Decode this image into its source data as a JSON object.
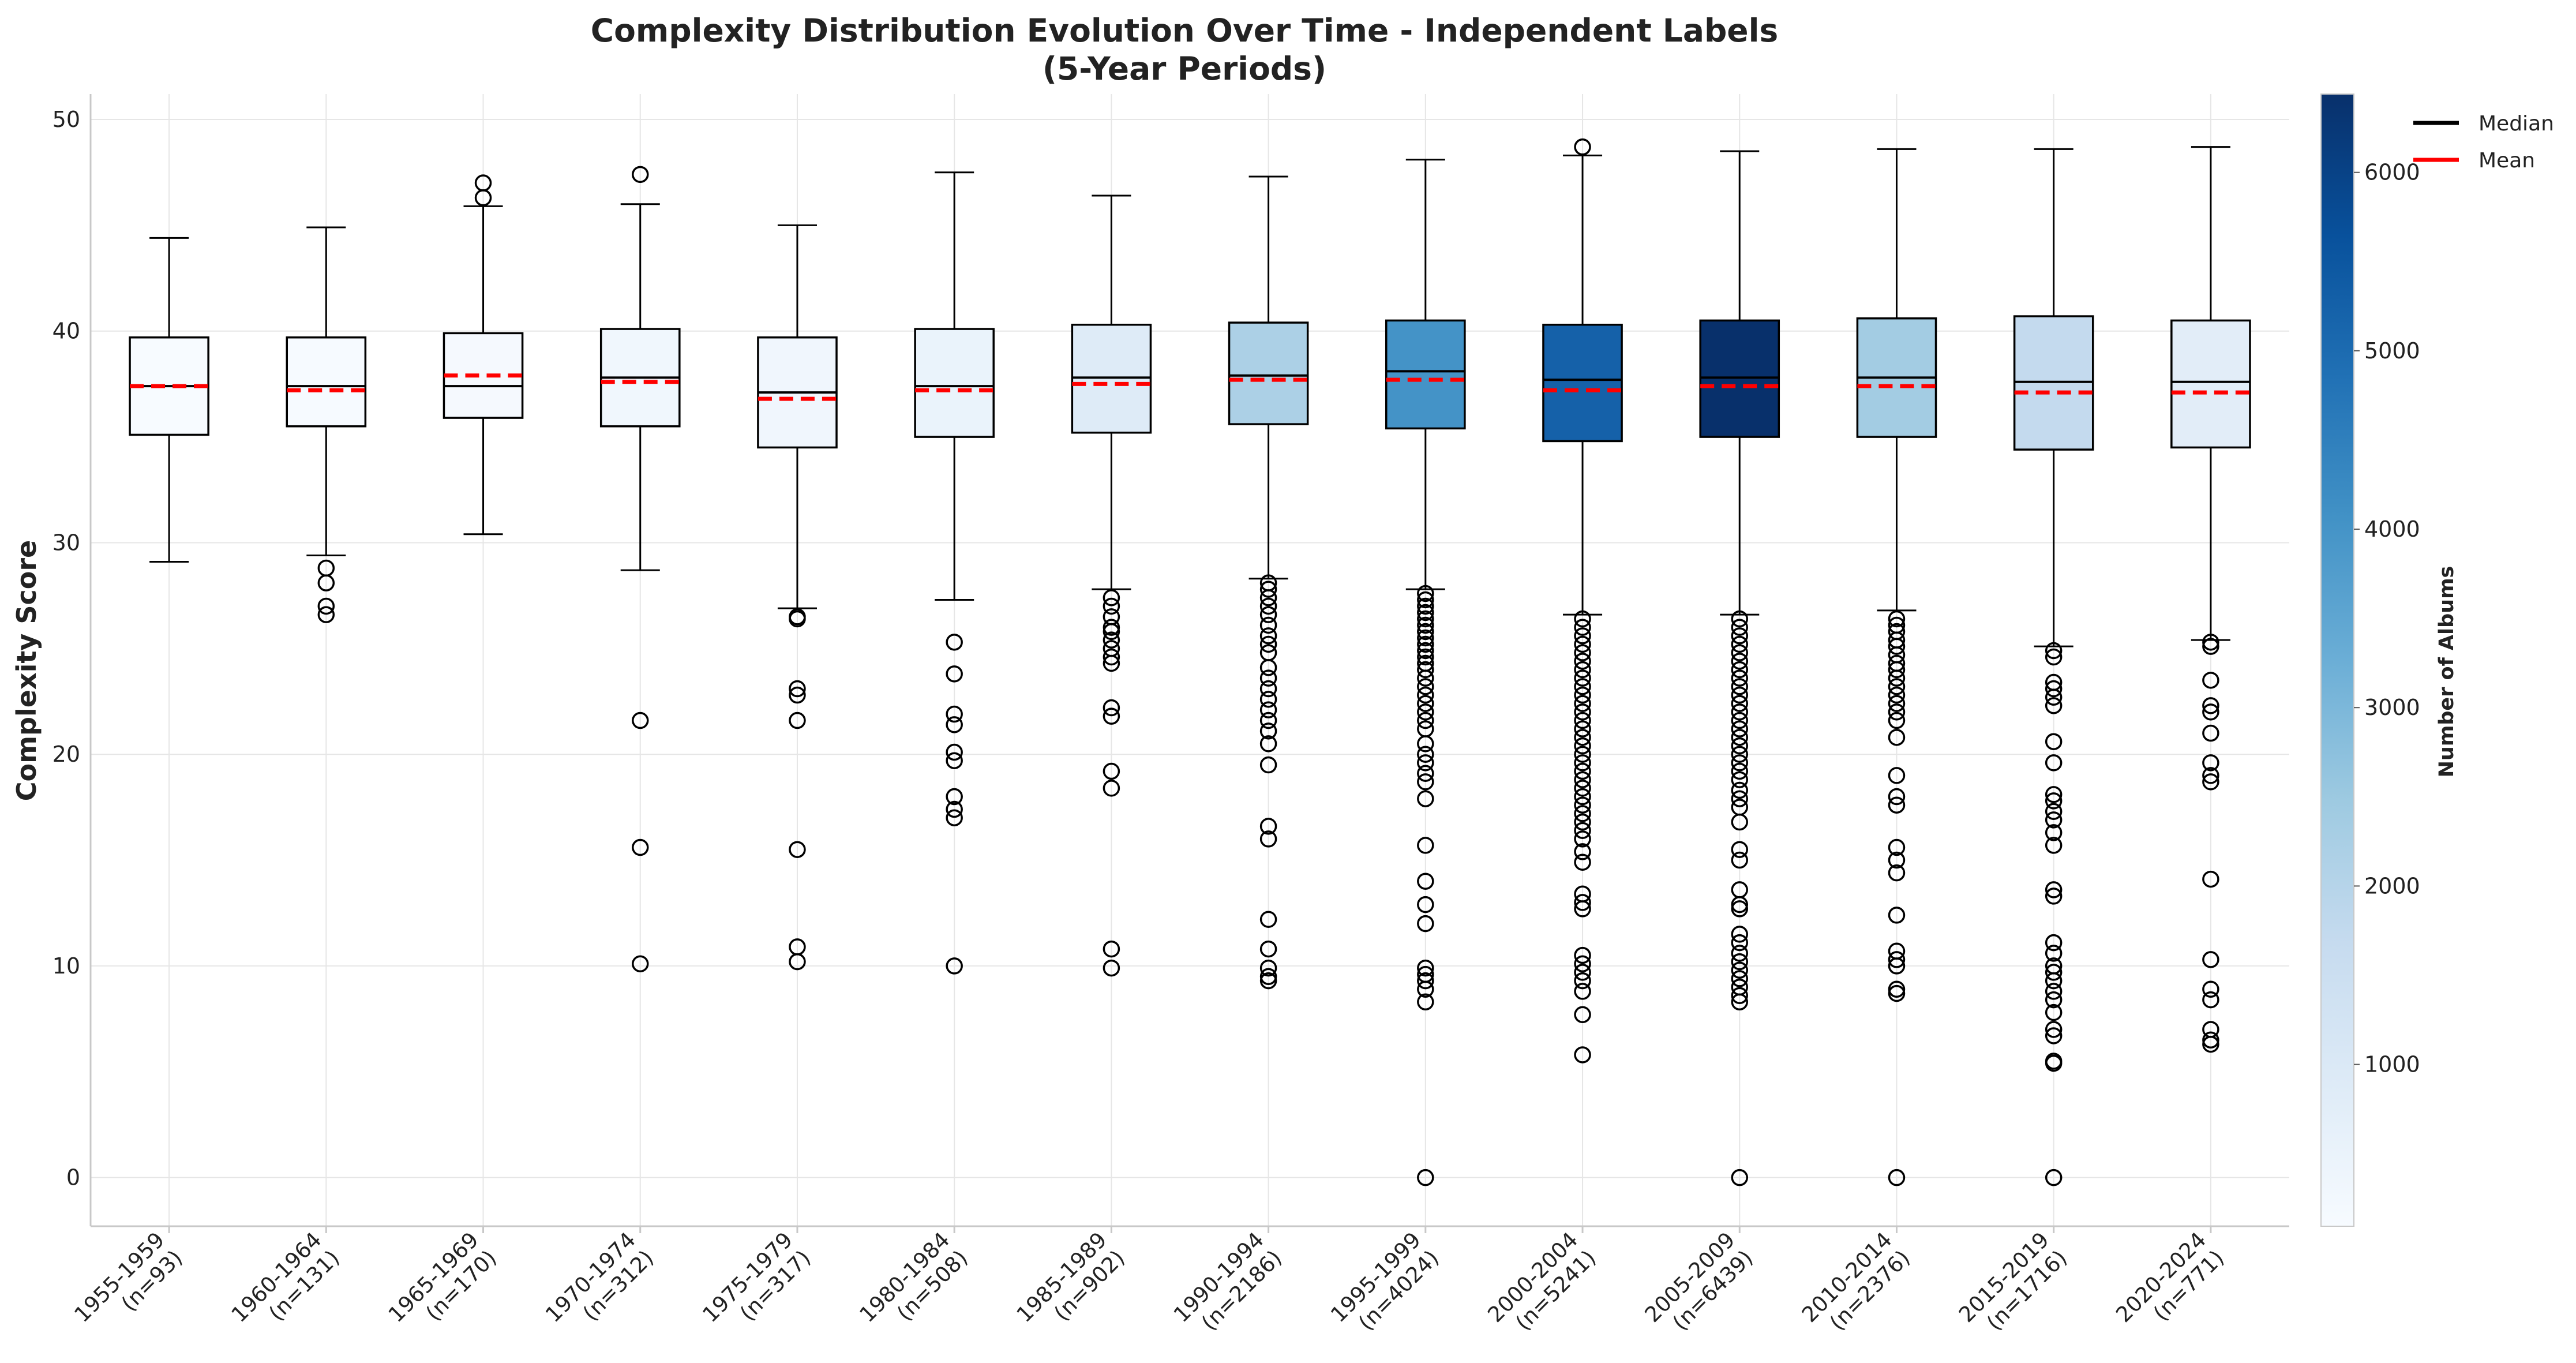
{
  "chart_data": {
    "type": "box",
    "title": "Complexity Distribution Evolution Over Time - Independent Labels",
    "subtitle": "(5-Year Periods)",
    "xlabel": "",
    "ylabel": "Complexity Score",
    "ylim": [
      -2.3,
      51.2
    ],
    "yticks": [
      0,
      10,
      20,
      30,
      40,
      50
    ],
    "grid": true,
    "legend": {
      "placement": "top-right",
      "entries": [
        {
          "label": "Median",
          "color": "#000000",
          "style": "solid"
        },
        {
          "label": "Mean",
          "color": "#ff0000",
          "style": "solid"
        }
      ]
    },
    "colorbar": {
      "label": "Number of Albums",
      "range": [
        93,
        6439
      ],
      "ticks": [
        1000,
        2000,
        3000,
        4000,
        5000,
        6000
      ],
      "colormap": "Blues",
      "stops": [
        "#f7fbff",
        "#deebf7",
        "#c6dbef",
        "#9ecae1",
        "#6baed6",
        "#4292c6",
        "#2171b5",
        "#08519c",
        "#08306b"
      ]
    },
    "colors": {
      "median": "#000000",
      "mean": "#ff0000",
      "box_edge": "#000000",
      "grid": "#e6e6e6"
    },
    "categories": [
      {
        "period": "1955-1959",
        "n_label": "(n=93)",
        "n": 93,
        "whisker_low": 29.1,
        "q1": 35.1,
        "median": 37.4,
        "mean": 37.4,
        "q3": 39.7,
        "whisker_high": 44.4,
        "outliers": []
      },
      {
        "period": "1960-1964",
        "n_label": "(n=131)",
        "n": 131,
        "whisker_low": 29.4,
        "q1": 35.5,
        "median": 37.4,
        "mean": 37.2,
        "q3": 39.7,
        "whisker_high": 44.9,
        "outliers": [
          28.8,
          28.1,
          27.0,
          26.6
        ]
      },
      {
        "period": "1965-1969",
        "n_label": "(n=170)",
        "n": 170,
        "whisker_low": 30.4,
        "q1": 35.9,
        "median": 37.4,
        "mean": 37.9,
        "q3": 39.9,
        "whisker_high": 45.9,
        "outliers": [
          46.3,
          47.0
        ]
      },
      {
        "period": "1970-1974",
        "n_label": "(n=312)",
        "n": 312,
        "whisker_low": 28.7,
        "q1": 35.5,
        "median": 37.8,
        "mean": 37.6,
        "q3": 40.1,
        "whisker_high": 46.0,
        "outliers": [
          47.4,
          21.6,
          15.6,
          10.1
        ]
      },
      {
        "period": "1975-1979",
        "n_label": "(n=317)",
        "n": 317,
        "whisker_low": 26.9,
        "q1": 34.5,
        "median": 37.1,
        "mean": 36.8,
        "q3": 39.7,
        "whisker_high": 45.0,
        "outliers": [
          26.5,
          26.4,
          23.1,
          22.8,
          21.6,
          15.5,
          10.9,
          10.2
        ]
      },
      {
        "period": "1980-1984",
        "n_label": "(n=508)",
        "n": 508,
        "whisker_low": 27.3,
        "q1": 35.0,
        "median": 37.4,
        "mean": 37.2,
        "q3": 40.1,
        "whisker_high": 47.5,
        "outliers": [
          25.3,
          23.8,
          21.9,
          21.4,
          20.1,
          19.7,
          18.0,
          17.4,
          17.0,
          10.0
        ]
      },
      {
        "period": "1985-1989",
        "n_label": "(n=902)",
        "n": 902,
        "whisker_low": 27.8,
        "q1": 35.2,
        "median": 37.8,
        "mean": 37.5,
        "q3": 40.3,
        "whisker_high": 46.4,
        "outliers": [
          27.4,
          27.0,
          26.5,
          26.0,
          25.8,
          25.4,
          25.0,
          24.6,
          24.3,
          22.2,
          21.8,
          19.2,
          18.4,
          10.8,
          9.9
        ]
      },
      {
        "period": "1990-1994",
        "n_label": "(n=2186)",
        "n": 2186,
        "whisker_low": 28.3,
        "q1": 35.6,
        "median": 37.9,
        "mean": 37.7,
        "q3": 40.4,
        "whisker_high": 47.3,
        "outliers": [
          28.1,
          27.8,
          27.4,
          27.0,
          26.6,
          26.1,
          25.6,
          25.2,
          24.8,
          24.1,
          23.6,
          23.1,
          22.6,
          22.1,
          21.6,
          21.1,
          20.5,
          19.5,
          16.6,
          16.0,
          12.2,
          10.8,
          9.9,
          9.5,
          9.3
        ]
      },
      {
        "period": "1995-1999",
        "n_label": "(n=4024)",
        "n": 4024,
        "whisker_low": 27.8,
        "q1": 35.4,
        "median": 38.1,
        "mean": 37.7,
        "q3": 40.5,
        "whisker_high": 48.1,
        "outliers": [
          27.6,
          27.3,
          27.0,
          26.7,
          26.4,
          26.1,
          25.8,
          25.5,
          25.2,
          24.9,
          24.6,
          24.3,
          24.0,
          23.6,
          23.2,
          22.8,
          22.4,
          22.0,
          21.6,
          21.2,
          20.5,
          20.0,
          19.6,
          19.1,
          18.7,
          17.9,
          15.7,
          14.0,
          12.9,
          12.0,
          9.9,
          9.6,
          9.3,
          8.9,
          8.3,
          0.0
        ]
      },
      {
        "period": "2000-2004",
        "n_label": "(n=5241)",
        "n": 5241,
        "whisker_low": 26.6,
        "q1": 34.8,
        "median": 37.7,
        "mean": 37.2,
        "q3": 40.3,
        "whisker_high": 48.3,
        "outliers": [
          48.7,
          26.4,
          26.0,
          25.6,
          25.2,
          24.8,
          24.4,
          24.0,
          23.6,
          23.2,
          22.8,
          22.4,
          22.0,
          21.6,
          21.2,
          20.8,
          20.4,
          20.0,
          19.6,
          19.2,
          18.8,
          18.4,
          18.0,
          17.6,
          17.2,
          16.8,
          16.4,
          16.0,
          15.4,
          14.9,
          13.4,
          13.0,
          12.7,
          10.5,
          10.1,
          9.7,
          9.3,
          8.8,
          7.7,
          5.8
        ]
      },
      {
        "period": "2005-2009",
        "n_label": "(n=6439)",
        "n": 6439,
        "whisker_low": 26.6,
        "q1": 35.0,
        "median": 37.8,
        "mean": 37.4,
        "q3": 40.5,
        "whisker_high": 48.5,
        "outliers": [
          26.4,
          26.0,
          25.6,
          25.2,
          24.8,
          24.4,
          24.0,
          23.6,
          23.2,
          22.8,
          22.4,
          22.0,
          21.6,
          21.2,
          20.8,
          20.4,
          20.0,
          19.6,
          19.2,
          18.8,
          18.3,
          17.9,
          17.5,
          16.8,
          15.5,
          15.0,
          13.6,
          12.9,
          12.7,
          11.5,
          11.1,
          10.6,
          10.2,
          9.8,
          9.4,
          9.0,
          8.6,
          8.3,
          0.0
        ]
      },
      {
        "period": "2010-2014",
        "n_label": "(n=2376)",
        "n": 2376,
        "whisker_low": 26.8,
        "q1": 35.0,
        "median": 37.8,
        "mean": 37.4,
        "q3": 40.6,
        "whisker_high": 48.6,
        "outliers": [
          26.4,
          26.1,
          25.8,
          25.4,
          25.1,
          24.7,
          24.3,
          24.0,
          23.6,
          23.2,
          22.8,
          22.4,
          22.0,
          21.6,
          20.8,
          19.0,
          18.0,
          17.6,
          15.6,
          15.0,
          14.4,
          12.4,
          10.7,
          10.3,
          10.0,
          8.9,
          8.7,
          0.0
        ]
      },
      {
        "period": "2015-2019",
        "n_label": "(n=1716)",
        "n": 1716,
        "whisker_low": 25.1,
        "q1": 34.4,
        "median": 37.6,
        "mean": 37.1,
        "q3": 40.7,
        "whisker_high": 48.6,
        "outliers": [
          24.9,
          24.6,
          23.4,
          23.1,
          22.7,
          22.3,
          20.6,
          19.6,
          18.1,
          17.8,
          17.3,
          16.9,
          16.3,
          15.7,
          13.6,
          13.3,
          11.1,
          10.6,
          10.0,
          9.7,
          9.3,
          8.8,
          8.4,
          7.8,
          7.0,
          6.7,
          5.5,
          5.4,
          0.0
        ]
      },
      {
        "period": "2020-2024",
        "n_label": "(n=771)",
        "n": 771,
        "whisker_low": 25.4,
        "q1": 34.5,
        "median": 37.6,
        "mean": 37.1,
        "q3": 40.5,
        "whisker_high": 48.7,
        "outliers": [
          25.3,
          25.1,
          23.5,
          22.3,
          22.0,
          21.0,
          19.6,
          19.0,
          18.7,
          14.1,
          10.3,
          8.9,
          8.4,
          7.0,
          6.5,
          6.3
        ]
      }
    ]
  }
}
